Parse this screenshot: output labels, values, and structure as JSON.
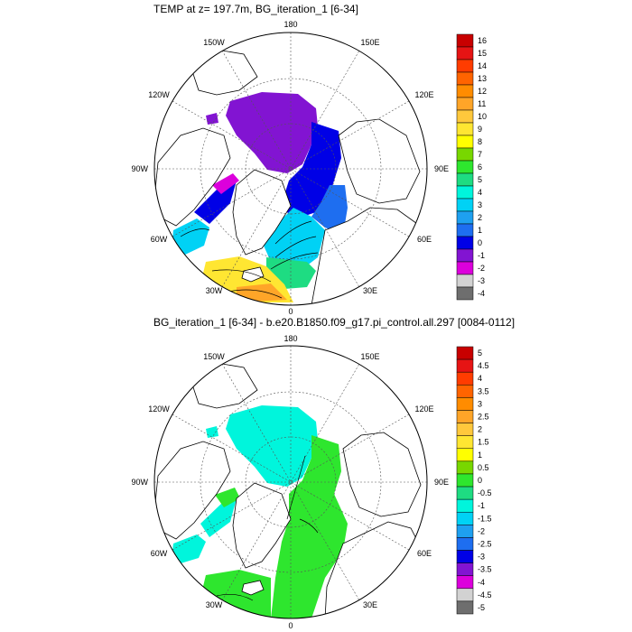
{
  "top_panel": {
    "title": "TEMP at z= 197.7m, BG_iteration_1 [6-34]",
    "lon_labels": {
      "n": "180",
      "s": "0",
      "w": "90W",
      "e": "90E",
      "nw1": "150W",
      "nw2": "120W",
      "sw1": "60W",
      "sw2": "30W",
      "ne1": "150E",
      "ne2": "120E",
      "se1": "60E",
      "se2": "30E"
    },
    "colorbar": {
      "labels": [
        "16",
        "15",
        "14",
        "13",
        "12",
        "11",
        "10",
        "9",
        "8",
        "7",
        "6",
        "5",
        "4",
        "3",
        "2",
        "1",
        "0",
        "-1",
        "-2",
        "-3",
        "-4"
      ],
      "colors": [
        "#c80000",
        "#e61414",
        "#ff3c00",
        "#ff6400",
        "#ff8c00",
        "#ffa528",
        "#ffc83c",
        "#ffe632",
        "#ffff00",
        "#78d700",
        "#2ee62e",
        "#1edc82",
        "#00f5dc",
        "#00d2f5",
        "#1ea0f0",
        "#1e6ef0",
        "#0000e6",
        "#8214d2",
        "#dc00dc",
        "#d2d2d2",
        "#6e6e6e"
      ]
    }
  },
  "bottom_panel": {
    "title": "BG_iteration_1 [6-34] - b.e20.B1850.f09_g17.pi_control.all.297 [0084-0112]",
    "lon_labels": {
      "n": "180",
      "s": "0",
      "w": "90W",
      "e": "90E",
      "nw1": "150W",
      "nw2": "120W",
      "sw1": "60W",
      "sw2": "30W",
      "ne1": "150E",
      "ne2": "120E",
      "se1": "60E",
      "se2": "30E"
    },
    "colorbar": {
      "labels": [
        "5",
        "4.5",
        "4",
        "3.5",
        "3",
        "2.5",
        "2",
        "1.5",
        "1",
        "0.5",
        "0",
        "-0.5",
        "-1",
        "-1.5",
        "-2",
        "-2.5",
        "-3",
        "-3.5",
        "-4",
        "-4.5",
        "-5"
      ],
      "colors": [
        "#c80000",
        "#e61414",
        "#ff3c00",
        "#ff6400",
        "#ff8c00",
        "#ffa528",
        "#ffc83c",
        "#ffe632",
        "#ffff00",
        "#78d700",
        "#2ee62e",
        "#1edc82",
        "#00f5dc",
        "#00d2f5",
        "#1ea0f0",
        "#1e6ef0",
        "#0000e6",
        "#8214d2",
        "#dc00dc",
        "#d2d2d2",
        "#6e6e6e"
      ]
    }
  }
}
